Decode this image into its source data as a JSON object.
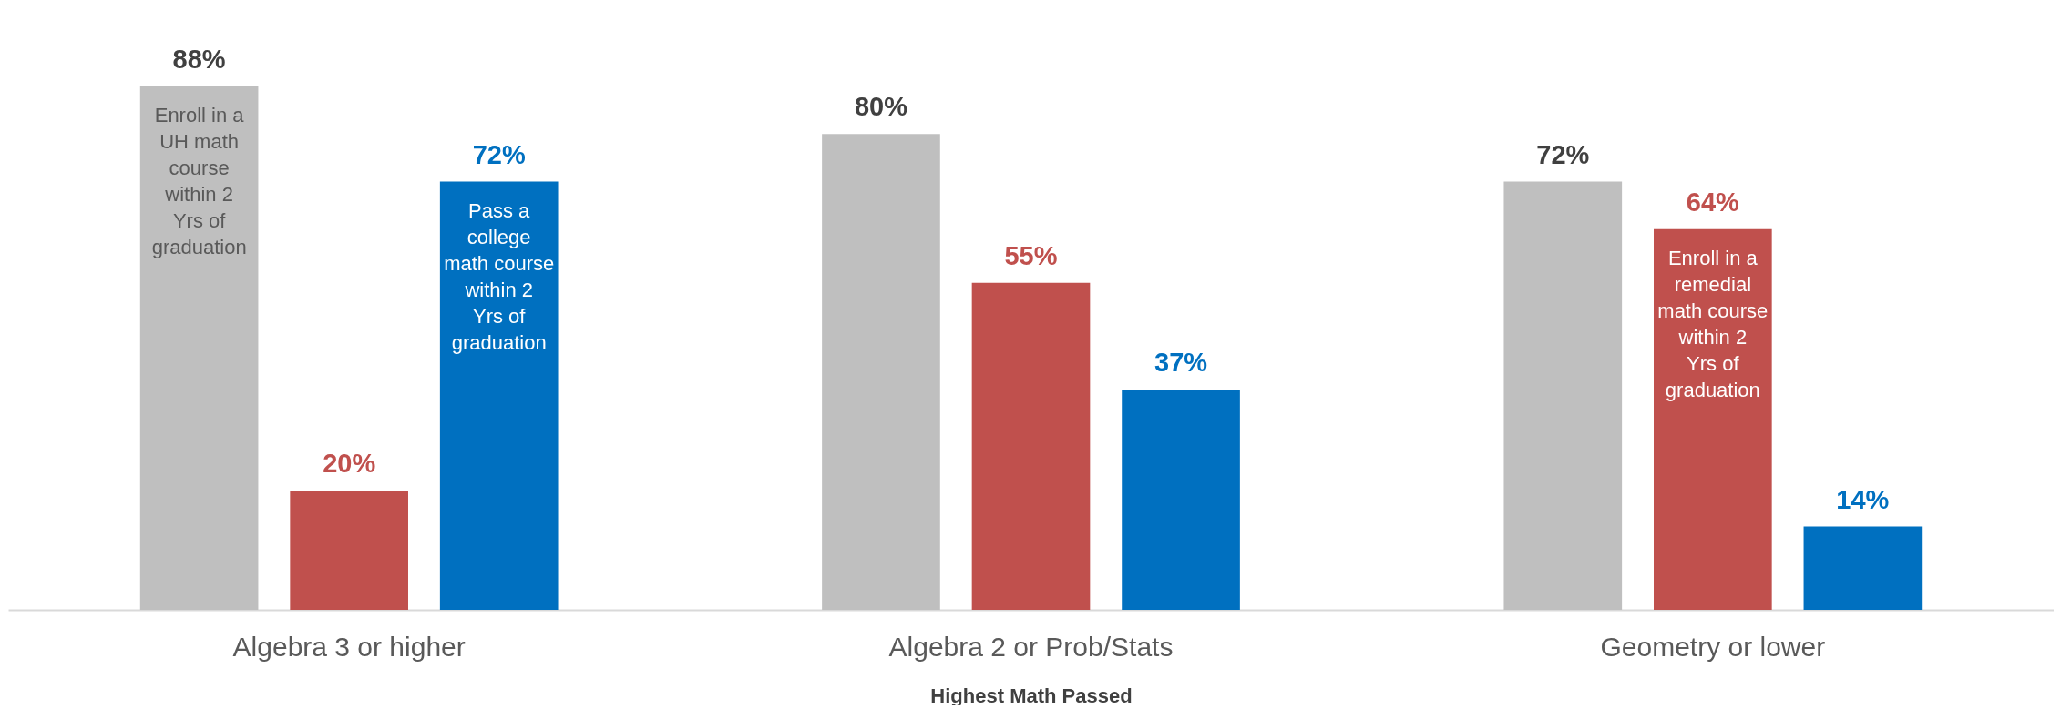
{
  "chart_data": {
    "type": "bar",
    "xlabel": "Highest Math Passed",
    "categories": [
      "Algebra 3 or higher",
      "Algebra 2 or Prob/Stats",
      "Geometry or lower"
    ],
    "series": [
      {
        "name": "Enroll in a UH math course within 2 Yrs of graduation",
        "color": "#bfbfbf",
        "values": [
          88,
          80,
          72
        ],
        "value_labels": [
          "88%",
          "80%",
          "72%"
        ]
      },
      {
        "name": "Enroll in a remedial math course within 2 Yrs of graduation",
        "color": "#c0504d",
        "values": [
          20,
          55,
          64
        ],
        "value_labels": [
          "20%",
          "55%",
          "64%"
        ]
      },
      {
        "name": "Pass a college math course within 2 Yrs of graduation",
        "color": "#0070c0",
        "values": [
          72,
          37,
          14
        ],
        "value_labels": [
          "72%",
          "37%",
          "14%"
        ]
      }
    ]
  }
}
